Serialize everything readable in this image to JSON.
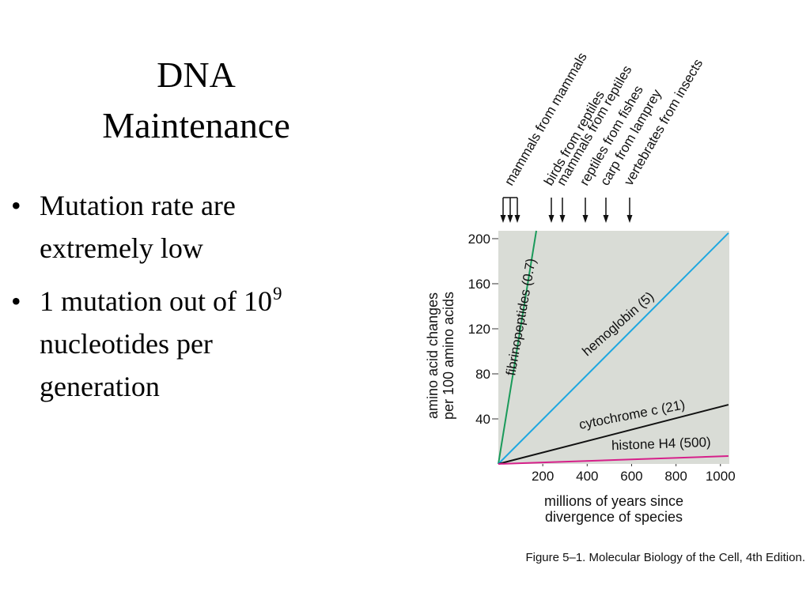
{
  "slide": {
    "title": [
      "DNA",
      "Maintenance"
    ],
    "bullets": [
      {
        "lines": [
          "Mutation rate are",
          "extremely low"
        ]
      },
      {
        "lines": [
          "1 mutation out of 10",
          "nucleotides per",
          "generation"
        ],
        "superscript": "9"
      }
    ],
    "caption": "Figure 5–1. Molecular Biology of the Cell, 4th Edition."
  },
  "chart_data": {
    "type": "line",
    "xlabel": [
      "millions of years since",
      "divergence of species"
    ],
    "ylabel": [
      "amino acid changes",
      "per 100 amino acids"
    ],
    "xlim": [
      0,
      1040
    ],
    "ylim": [
      0,
      207
    ],
    "xticks": [
      200,
      400,
      600,
      800,
      1000
    ],
    "yticks": [
      40,
      80,
      120,
      160,
      200
    ],
    "background": "#d9dcd6",
    "divergence_labels": [
      "mammals from mammals",
      "birds from reptiles",
      "mammals from reptiles",
      "reptiles from fishes",
      "carp from lamprey",
      "vertebrates from insects"
    ],
    "series": [
      {
        "name": "fibrinopeptides (0.7)",
        "color": "#1a9a5a",
        "x": [
          0,
          171
        ],
        "y": [
          0,
          207
        ]
      },
      {
        "name": "hemoglobin (5)",
        "color": "#1ea7e0",
        "x": [
          0,
          1036
        ],
        "y": [
          0,
          205
        ]
      },
      {
        "name": "cytochrome c (21)",
        "color": "#111111",
        "x": [
          0,
          1036
        ],
        "y": [
          0,
          52.6
        ]
      },
      {
        "name": "histone H4 (500)",
        "color": "#d6208a",
        "x": [
          0,
          1036
        ],
        "y": [
          0,
          7
        ]
      }
    ]
  }
}
